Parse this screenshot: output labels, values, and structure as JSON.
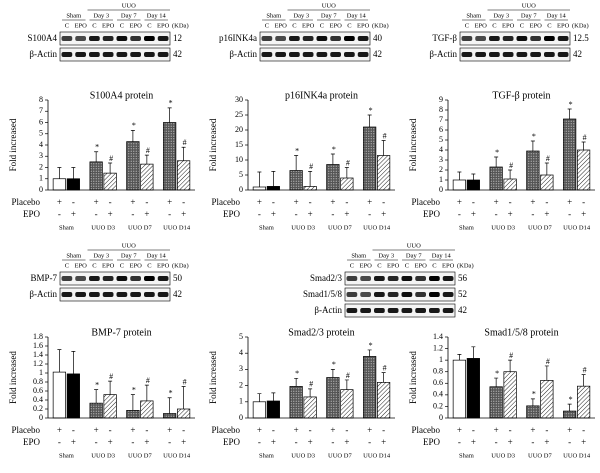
{
  "chart_data": [
    {
      "type": "bar",
      "title": "S100A4 protein",
      "ylabel": "Fold increased",
      "ylim": [
        0,
        8
      ],
      "yticks": [
        0,
        1,
        2,
        3,
        4,
        5,
        6,
        7,
        8
      ],
      "groups": [
        "Sham",
        "UUO D3",
        "UUO D7",
        "UUO D14"
      ],
      "series": [
        {
          "name": "Placebo",
          "pattern": "dots",
          "sham_color": "#ffffff",
          "values": [
            1,
            2.5,
            4.3,
            6
          ],
          "errors": [
            1,
            0.9,
            1,
            1.3
          ],
          "annotations": [
            null,
            "*",
            "*",
            "*"
          ],
          "signs": [
            "+",
            "-",
            "+",
            "-",
            "+",
            "-",
            "+",
            "-"
          ]
        },
        {
          "name": "EPO",
          "pattern": "hatch",
          "sham_color": "#000000",
          "values": [
            1,
            1.5,
            2.3,
            2.6
          ],
          "errors": [
            1,
            0.9,
            0.8,
            1.2
          ],
          "annotations": [
            null,
            "#",
            "#",
            "#"
          ],
          "signs": [
            "-",
            "+",
            "-",
            "+",
            "-",
            "+",
            "-",
            "+"
          ]
        }
      ],
      "blot": {
        "group_header": "UUO",
        "groups": [
          "Sham",
          "Day 3",
          "Day 7",
          "Day 14"
        ],
        "lanes": [
          "C",
          "EPO",
          "C",
          "EPO",
          "C",
          "EPO",
          "C",
          "EPO"
        ],
        "unit": "(KDa)",
        "rows": [
          {
            "name": "S100A4",
            "kda": "12"
          },
          {
            "name": "β-Actin",
            "kda": "42"
          }
        ]
      }
    },
    {
      "type": "bar",
      "title": "p16INK4a protein",
      "ylabel": "Fold increased",
      "ylim": [
        0,
        30
      ],
      "yticks": [
        0,
        5,
        10,
        15,
        20,
        25,
        30
      ],
      "groups": [
        "Sham",
        "UUO D3",
        "UUO D7",
        "UUO D14"
      ],
      "series": [
        {
          "name": "Placebo",
          "pattern": "dots",
          "sham_color": "#ffffff",
          "values": [
            1,
            6.5,
            8.5,
            21
          ],
          "errors": [
            5,
            5,
            3.5,
            4
          ],
          "annotations": [
            null,
            "*",
            "*",
            "*"
          ],
          "signs": [
            "+",
            "-",
            "+",
            "-",
            "+",
            "-",
            "+",
            "-"
          ]
        },
        {
          "name": "EPO",
          "pattern": "hatch",
          "sham_color": "#000000",
          "values": [
            1.2,
            1.2,
            4,
            11.5
          ],
          "errors": [
            5,
            5,
            3.5,
            5
          ],
          "annotations": [
            null,
            "#",
            "#",
            "#"
          ],
          "signs": [
            "-",
            "+",
            "-",
            "+",
            "-",
            "+",
            "-",
            "+"
          ]
        }
      ],
      "blot": {
        "group_header": "UUO",
        "groups": [
          "Sham",
          "Day 3",
          "Day 7",
          "Day 14"
        ],
        "lanes": [
          "C",
          "EPO",
          "C",
          "EPO",
          "C",
          "EPO",
          "C",
          "EPO"
        ],
        "unit": "(KDa)",
        "rows": [
          {
            "name": "p16INK4a",
            "kda": "40"
          },
          {
            "name": "β-Actin",
            "kda": "42"
          }
        ]
      }
    },
    {
      "type": "bar",
      "title": "TGF-β protein",
      "ylabel": "Fold increased",
      "ylim": [
        0,
        9
      ],
      "yticks": [
        0,
        1,
        2,
        3,
        4,
        5,
        6,
        7,
        8,
        9
      ],
      "groups": [
        "Sham",
        "UUO D3",
        "UUO D7",
        "UUO D14"
      ],
      "series": [
        {
          "name": "Placebo",
          "pattern": "dots",
          "sham_color": "#ffffff",
          "values": [
            1,
            2.3,
            3.9,
            7.1
          ],
          "errors": [
            0.8,
            1,
            1,
            1
          ],
          "annotations": [
            null,
            "*",
            "*",
            "*"
          ],
          "signs": [
            "+",
            "-",
            "+",
            "-",
            "+",
            "-",
            "+",
            "-"
          ]
        },
        {
          "name": "EPO",
          "pattern": "hatch",
          "sham_color": "#000000",
          "values": [
            1,
            1.1,
            1.5,
            4
          ],
          "errors": [
            0.6,
            0.9,
            1.2,
            0.8
          ],
          "annotations": [
            null,
            "#",
            "#",
            "#"
          ],
          "signs": [
            "-",
            "+",
            "-",
            "+",
            "-",
            "+",
            "-",
            "+"
          ]
        }
      ],
      "blot": {
        "group_header": "UUO",
        "groups": [
          "Sham",
          "Day 3",
          "Day 7",
          "Day 14"
        ],
        "lanes": [
          "C",
          "EPO",
          "C",
          "EPO",
          "C",
          "EPO",
          "C",
          "EPO"
        ],
        "unit": "(KDa)",
        "rows": [
          {
            "name": "TGF-β",
            "kda": "12.5"
          },
          {
            "name": "β-Actin",
            "kda": "42"
          }
        ]
      }
    },
    {
      "type": "bar",
      "title": "BMP-7 protein",
      "ylabel": "Fold increased",
      "ylim": [
        0,
        1.8
      ],
      "yticks": [
        0,
        0.2,
        0.4,
        0.6,
        0.8,
        1,
        1.2,
        1.4,
        1.6,
        1.8
      ],
      "groups": [
        "Sham",
        "UUO D3",
        "UUO D7",
        "UUO D14"
      ],
      "series": [
        {
          "name": "Placebo",
          "pattern": "dots",
          "sham_color": "#ffffff",
          "values": [
            1.02,
            0.33,
            0.17,
            0.1
          ],
          "errors": [
            0.5,
            0.3,
            0.35,
            0.35
          ],
          "annotations": [
            null,
            "*",
            "*",
            "*"
          ],
          "signs": [
            "+",
            "-",
            "+",
            "-",
            "+",
            "-",
            "+",
            "-"
          ]
        },
        {
          "name": "EPO",
          "pattern": "hatch",
          "sham_color": "#000000",
          "values": [
            0.98,
            0.52,
            0.38,
            0.2
          ],
          "errors": [
            0.5,
            0.3,
            0.35,
            0.5
          ],
          "annotations": [
            null,
            "#",
            "#",
            "#"
          ],
          "signs": [
            "-",
            "+",
            "-",
            "+",
            "-",
            "+",
            "-",
            "+"
          ]
        }
      ],
      "blot": {
        "group_header": "UUO",
        "groups": [
          "Sham",
          "Day 3",
          "Day 7",
          "Day 14"
        ],
        "lanes": [
          "C",
          "EPO",
          "C",
          "EPO",
          "C",
          "EPO",
          "C",
          "EPO"
        ],
        "unit": "(KDa)",
        "rows": [
          {
            "name": "BMP-7",
            "kda": "50"
          },
          {
            "name": "β-Actin",
            "kda": "42"
          }
        ]
      }
    },
    {
      "type": "bar",
      "title": "Smad2/3 protein",
      "ylabel": "Fold increased",
      "ylim": [
        0,
        5
      ],
      "yticks": [
        0,
        1,
        2,
        3,
        4,
        5
      ],
      "groups": [
        "Sham",
        "UUO D3",
        "UUO D7",
        "UUO D14"
      ],
      "series": [
        {
          "name": "Placebo",
          "pattern": "dots",
          "sham_color": "#ffffff",
          "values": [
            1,
            1.95,
            2.5,
            3.8
          ],
          "errors": [
            0.5,
            0.5,
            0.5,
            0.4
          ],
          "annotations": [
            null,
            "*",
            "*",
            "*"
          ],
          "signs": [
            "+",
            "-",
            "+",
            "-",
            "+",
            "-",
            "+",
            "-"
          ]
        },
        {
          "name": "EPO",
          "pattern": "hatch",
          "sham_color": "#000000",
          "values": [
            1.05,
            1.3,
            1.75,
            2.2
          ],
          "errors": [
            0.5,
            0.5,
            0.6,
            0.6
          ],
          "annotations": [
            null,
            "#",
            "#",
            "#"
          ],
          "signs": [
            "-",
            "+",
            "-",
            "+",
            "-",
            "+",
            "-",
            "+"
          ]
        }
      ],
      "blot": {
        "group_header": "UUO",
        "groups": [
          "Sham",
          "Day 3",
          "Day 7",
          "Day 14"
        ],
        "lanes": [
          "C",
          "EPO",
          "C",
          "EPO",
          "C",
          "EPO",
          "C",
          "EPO"
        ],
        "unit": "(KDa)",
        "rows": [
          {
            "name": "Smad2/3",
            "kda": "56"
          },
          {
            "name": "Smad1/5/8",
            "kda": "52"
          },
          {
            "name": "β-Actin",
            "kda": "42"
          }
        ]
      }
    },
    {
      "type": "bar",
      "title": "Smad1/5/8 protein",
      "ylabel": "Fold increased",
      "ylim": [
        0,
        1.4
      ],
      "yticks": [
        0,
        0.2,
        0.4,
        0.6,
        0.8,
        1,
        1.2,
        1.4
      ],
      "groups": [
        "Sham",
        "UUO D3",
        "UUO D7",
        "UUO D14"
      ],
      "series": [
        {
          "name": "Placebo",
          "pattern": "dots",
          "sham_color": "#ffffff",
          "values": [
            1,
            0.54,
            0.21,
            0.12
          ],
          "errors": [
            0.1,
            0.15,
            0.12,
            0.12
          ],
          "annotations": [
            null,
            "*",
            "*",
            "*"
          ],
          "signs": [
            "+",
            "-",
            "+",
            "-",
            "+",
            "-",
            "+",
            "-"
          ]
        },
        {
          "name": "EPO",
          "pattern": "hatch",
          "sham_color": "#000000",
          "values": [
            1.03,
            0.8,
            0.65,
            0.55
          ],
          "errors": [
            0.2,
            0.2,
            0.25,
            0.2
          ],
          "annotations": [
            null,
            "#",
            "#",
            "#"
          ],
          "signs": [
            "-",
            "+",
            "-",
            "+",
            "-",
            "+",
            "-",
            "+"
          ]
        }
      ]
    }
  ]
}
